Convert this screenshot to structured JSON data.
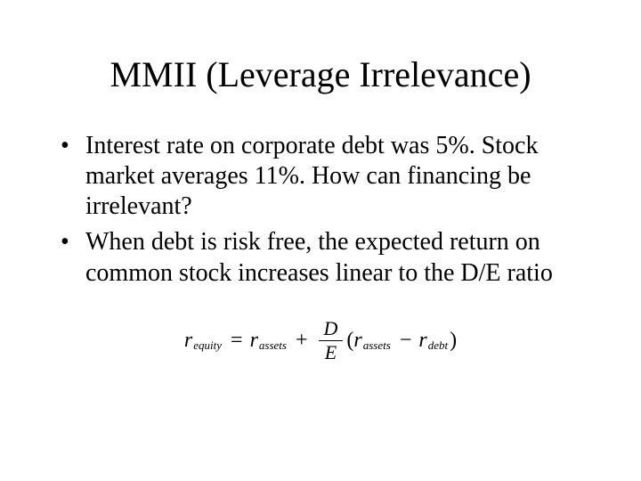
{
  "title": "MMII (Leverage Irrelevance)",
  "bullets": [
    "Interest rate on corporate debt was 5%. Stock market averages 11%. How can financing be irrelevant?",
    "When debt is risk free, the expected return on common stock increases linear to the D/E ratio"
  ],
  "formula": {
    "lhs_var": "r",
    "lhs_sub": "equity",
    "eq": "=",
    "term1_var": "r",
    "term1_sub": "assets",
    "plus": "+",
    "frac_num": "D",
    "frac_den": "E",
    "open_paren": "(",
    "inner1_var": "r",
    "inner1_sub": "assets",
    "minus": "−",
    "inner2_var": "r",
    "inner2_sub": "debt",
    "close_paren": ")"
  },
  "colors": {
    "background": "#ffffff",
    "text": "#000000"
  },
  "fonts": {
    "family": "Times New Roman",
    "title_size_pt": 40,
    "body_size_pt": 28,
    "formula_size_pt": 24,
    "subscript_size_pt": 13
  }
}
